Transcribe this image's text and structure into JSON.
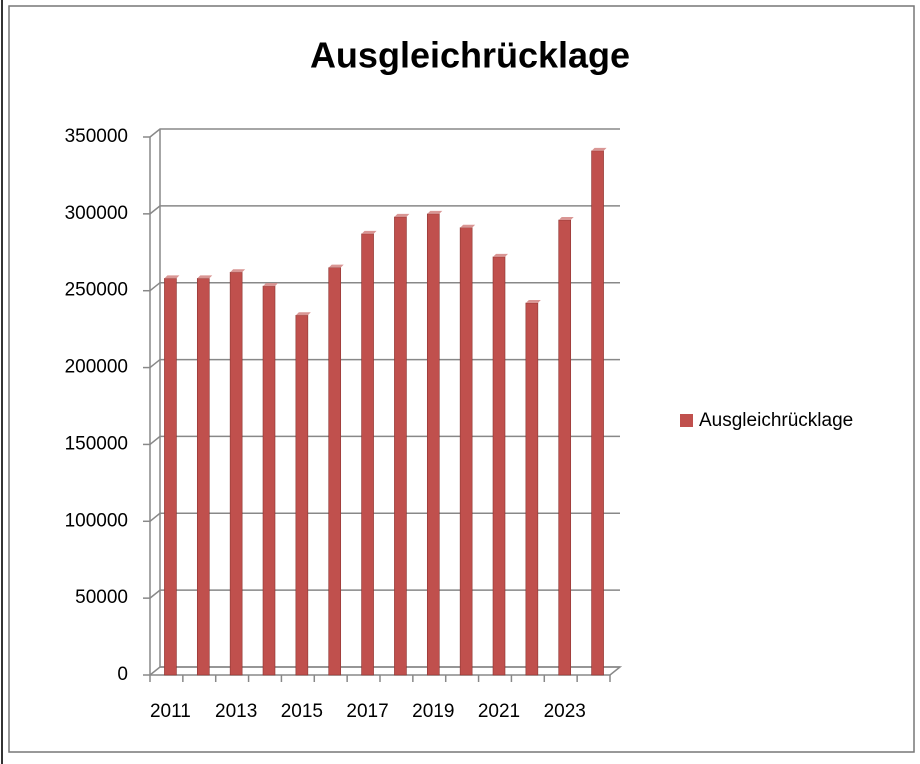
{
  "chart_data": {
    "type": "bar",
    "title": "Ausgleichrücklage",
    "categories": [
      "2011",
      null,
      "2013",
      null,
      "2015",
      null,
      "2017",
      null,
      "2019",
      null,
      "2021",
      null,
      "2023",
      null
    ],
    "series": [
      {
        "name": "Ausgleichrücklage",
        "color": "#c0504d",
        "values": [
          258000,
          258000,
          262000,
          253000,
          234000,
          265000,
          287000,
          298000,
          300000,
          291000,
          272000,
          242000,
          296000,
          341000
        ]
      }
    ],
    "ylim": [
      0,
      350000
    ],
    "yticks": [
      0,
      50000,
      100000,
      150000,
      200000,
      250000,
      300000,
      350000
    ],
    "grid": true,
    "legend": "right"
  }
}
